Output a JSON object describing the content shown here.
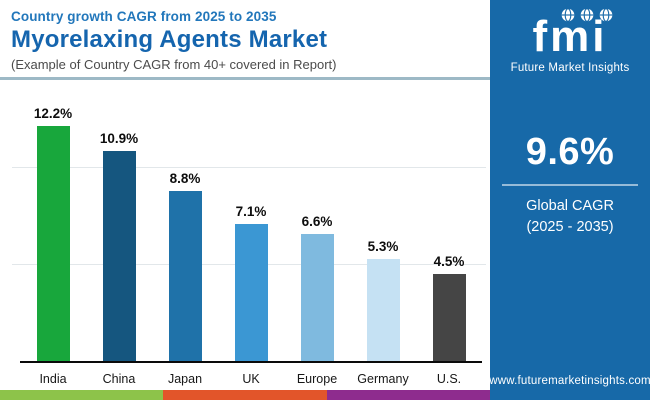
{
  "header": {
    "kicker": "Country growth CAGR from 2025 to 2035",
    "title": "Myorelaxing Agents Market",
    "note": "(Example of Country CAGR from 40+ covered in Report)"
  },
  "chart_data": {
    "type": "bar",
    "title": "Myorelaxing Agents Market — Country growth CAGR from 2025 to 2035",
    "categories": [
      "India",
      "China",
      "Japan",
      "UK",
      "Europe",
      "Germany",
      "U.S."
    ],
    "values": [
      12.2,
      10.9,
      8.8,
      7.1,
      6.6,
      5.3,
      4.5
    ],
    "value_labels": [
      "12.2%",
      "10.9%",
      "8.8%",
      "7.1%",
      "6.6%",
      "5.3%",
      "4.5%"
    ],
    "bar_colors": [
      "#18a73c",
      "#15567f",
      "#1f72a9",
      "#3b97d3",
      "#7fbadf",
      "#c5e1f3",
      "#454545"
    ],
    "xlabel": "",
    "ylabel": "",
    "ylim": [
      0,
      14
    ],
    "gridlines_at": [
      5,
      10
    ],
    "grid": true,
    "legend": false
  },
  "panel": {
    "logo_text": "fmi",
    "logo_subtext": "Future Market Insights",
    "global_cagr_value": "9.6%",
    "global_cagr_label1": "Global CAGR",
    "global_cagr_label2": "(2025 - 2035)",
    "website": "www.futuremarketinsights.com"
  },
  "icons": {
    "logo_globes": [
      "globe-icon",
      "globe-icon",
      "globe-icon"
    ]
  },
  "colors": {
    "panel_background": "#1769a8",
    "kicker_blue": "#2277bb",
    "title_blue": "#1565ae",
    "note_gray": "#4b4b4b",
    "header_divider": "#9db9c6",
    "axis_black": "#0a0a0a",
    "gridline": "#e2e7ea",
    "strip": [
      "#8dc34a",
      "#e2552a",
      "#8e2c8e"
    ]
  }
}
